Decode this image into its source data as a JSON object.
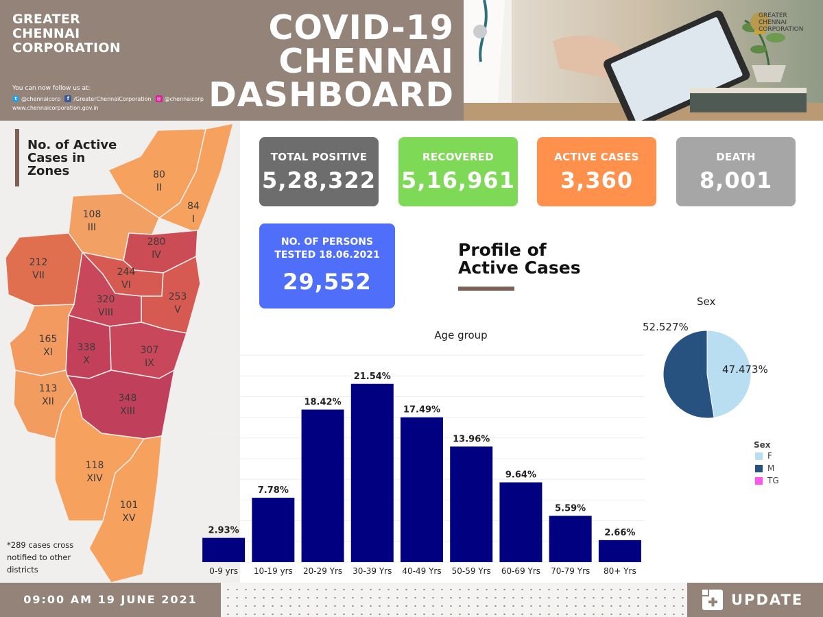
{
  "header": {
    "org_name_lines": [
      "GREATER",
      "CHENNAI",
      "CORPORATION"
    ],
    "follow_text": "You can now follow us at:",
    "social": {
      "twitter": "@chennaicorp",
      "facebook": "/GreaterChennaiCorporation",
      "instagram": "@chennaicorp",
      "website": "www.chennaicorporation.gov.in"
    },
    "title_lines": [
      "COVID-19",
      "CHENNAI",
      "DASHBOARD"
    ],
    "logo_text_lines": [
      "GREATER",
      "CHENNAI",
      "CORPORATION"
    ]
  },
  "map": {
    "title_lines": [
      "No. of Active",
      "Cases in",
      "Zones"
    ],
    "zones": [
      {
        "roman": "I",
        "count": "84"
      },
      {
        "roman": "II",
        "count": "80"
      },
      {
        "roman": "III",
        "count": "108"
      },
      {
        "roman": "IV",
        "count": "280"
      },
      {
        "roman": "V",
        "count": "253"
      },
      {
        "roman": "VI",
        "count": "244"
      },
      {
        "roman": "VII",
        "count": "212"
      },
      {
        "roman": "VIII",
        "count": "320"
      },
      {
        "roman": "IX",
        "count": "307"
      },
      {
        "roman": "X",
        "count": "338"
      },
      {
        "roman": "XI",
        "count": "165"
      },
      {
        "roman": "XII",
        "count": "113"
      },
      {
        "roman": "XIII",
        "count": "348"
      },
      {
        "roman": "XIV",
        "count": "118"
      },
      {
        "roman": "XV",
        "count": "101"
      }
    ],
    "note_lines": [
      "*289 cases cross",
      "notified to other",
      "districts"
    ]
  },
  "kpis": [
    {
      "label": "TOTAL POSITIVE",
      "value": "5,28,322",
      "color": "#6d6d6d"
    },
    {
      "label": "RECOVERED",
      "value": "5,16,961",
      "color": "#7ed957"
    },
    {
      "label": "ACTIVE CASES",
      "value": "3,360",
      "color": "#ff914d"
    },
    {
      "label": "DEATH",
      "value": "8,001",
      "color": "#a6a6a6"
    }
  ],
  "tested": {
    "label_lines": [
      "NO. OF PERSONS",
      "TESTED 18.06.2021"
    ],
    "value": "29,552"
  },
  "profile": {
    "title_lines": [
      "Profile of",
      "Active Cases"
    ]
  },
  "chart_data": [
    {
      "type": "bar",
      "title": "Age group",
      "categories": [
        "0-9 yrs",
        "10-19 yrs",
        "20-29 Yrs",
        "30-39 Yrs",
        "40-49 Yrs",
        "50-59 Yrs",
        "60-69 Yrs",
        "70-79 Yrs",
        "80+ Yrs"
      ],
      "values": [
        2.93,
        7.78,
        18.42,
        21.54,
        17.49,
        13.96,
        9.64,
        5.59,
        2.66
      ],
      "data_labels": [
        "2.93%",
        "7.78%",
        "18.42%",
        "21.54%",
        "17.49%",
        "13.96%",
        "9.64%",
        "5.59%",
        "2.66%"
      ],
      "xlabel": "",
      "ylabel": "",
      "ylim": [
        0,
        25
      ],
      "color": "#000080"
    },
    {
      "type": "pie",
      "title": "Sex",
      "labels": [
        "F",
        "M",
        "TG"
      ],
      "values": [
        47.473,
        52.527,
        0
      ],
      "data_labels": [
        "47.473%",
        "52.527%",
        ""
      ],
      "colors": [
        "#b9def2",
        "#27517e",
        "#ff55ee"
      ],
      "legend_title": "Sex",
      "legend_position": "bottom-right"
    }
  ],
  "footer": {
    "datetime": "09:00 AM 19 JUNE 2021",
    "update_label": "UPDATE"
  }
}
